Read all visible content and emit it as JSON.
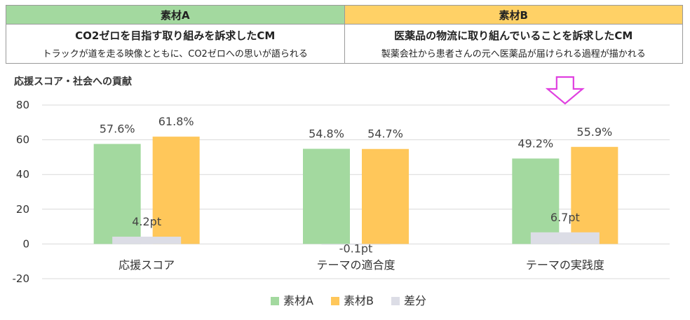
{
  "header": {
    "material_a": {
      "label": "素材A",
      "title": "CO2ゼロを目指す取り組みを訴求したCM",
      "desc": "トラックが道を走る映像とともに、CO2ゼロへの思いが語られる"
    },
    "material_b": {
      "label": "素材B",
      "title": "医薬品の物流に取り組んでいることを訴求したCM",
      "desc": "製薬会社から患者さんの元へ医薬品が届けられる過程が描かれる"
    }
  },
  "chart_data": {
    "type": "bar",
    "title": "応援スコア・社会への貢献",
    "categories": [
      "応援スコア",
      "テーマの適合度",
      "テーマの実践度"
    ],
    "series": [
      {
        "name": "素材A",
        "values": [
          57.6,
          54.8,
          49.2
        ],
        "labels": [
          "57.6%",
          "54.8%",
          "49.2%"
        ],
        "color": "#a3d99f"
      },
      {
        "name": "素材B",
        "values": [
          61.8,
          54.7,
          55.9
        ],
        "labels": [
          "61.8%",
          "54.7%",
          "55.9%"
        ],
        "color": "#ffc75a"
      },
      {
        "name": "差分",
        "values": [
          4.2,
          -0.1,
          6.7
        ],
        "labels": [
          "4.2pt",
          "-0.1pt",
          "6.7pt"
        ],
        "color": "#dcdde6"
      }
    ],
    "yticks": [
      "80",
      "60",
      "40",
      "20",
      "0",
      "-20"
    ],
    "ylim": [
      -20,
      80
    ],
    "grid": true,
    "legend": "bottom",
    "arrow_color": "#e040e0"
  }
}
